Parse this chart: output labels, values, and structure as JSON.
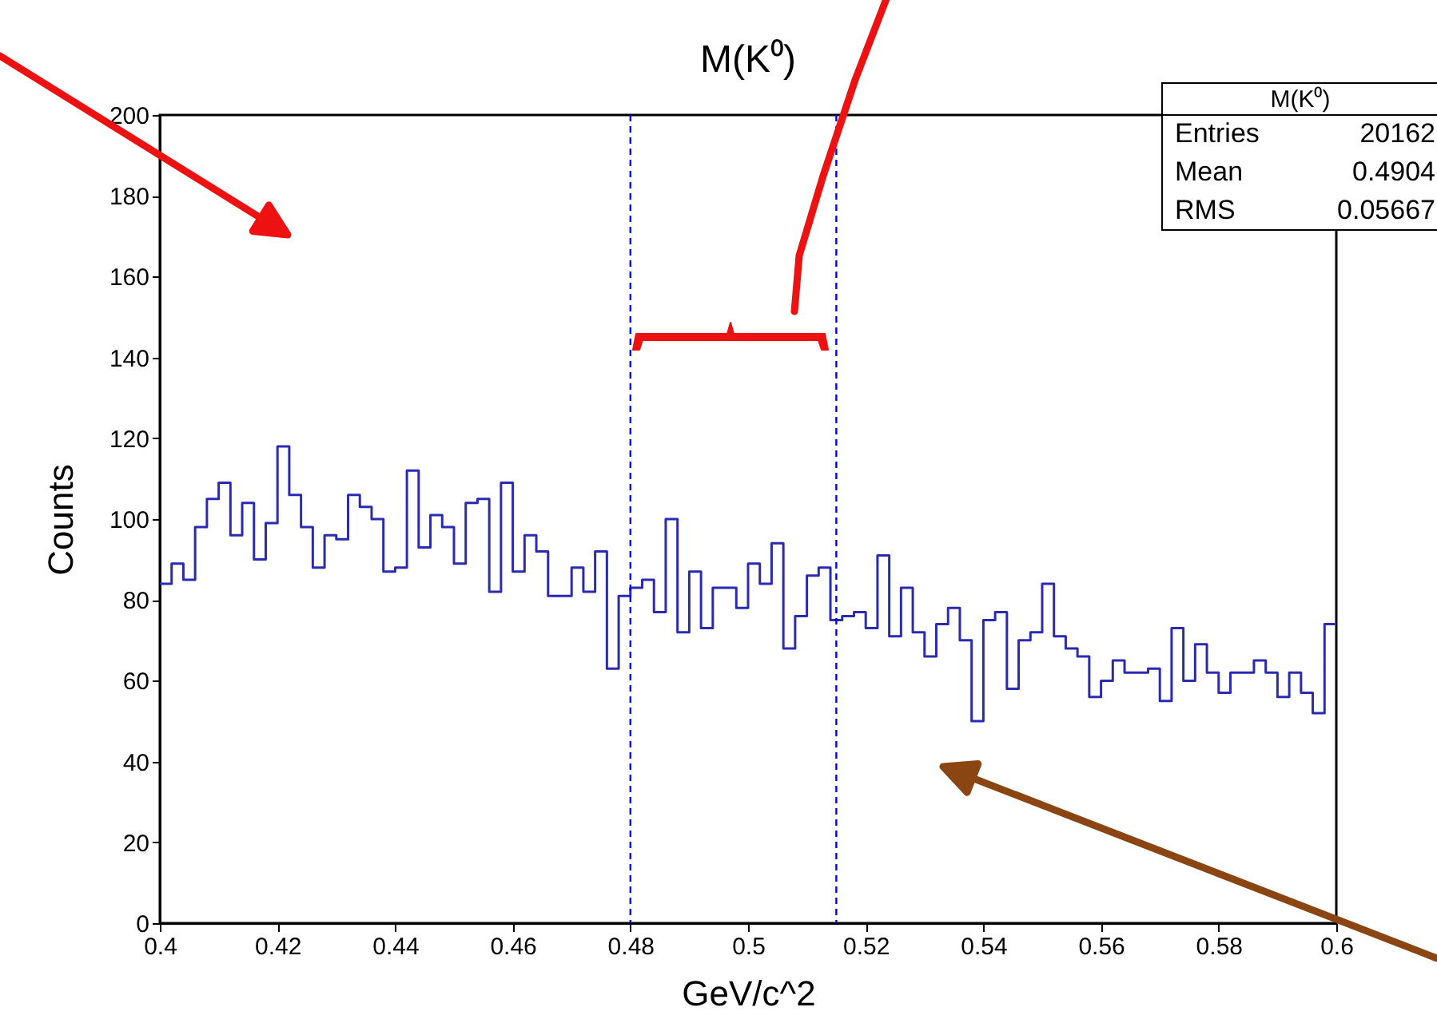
{
  "chart_data": {
    "type": "histogram",
    "title": "M(K⁰)",
    "xlabel": "GeV/c^2",
    "ylabel": "Counts",
    "bins": [
      0.4,
      0.402,
      0.404,
      0.406,
      0.408,
      0.41,
      0.412,
      0.414,
      0.416,
      0.418,
      0.42,
      0.422,
      0.424,
      0.426,
      0.428,
      0.43,
      0.432,
      0.434,
      0.436,
      0.438,
      0.44,
      0.442,
      0.444,
      0.446,
      0.448,
      0.45,
      0.452,
      0.454,
      0.456,
      0.458,
      0.46,
      0.462,
      0.464,
      0.466,
      0.468,
      0.47,
      0.472,
      0.474,
      0.476,
      0.478,
      0.48,
      0.482,
      0.484,
      0.486,
      0.488,
      0.49,
      0.492,
      0.494,
      0.496,
      0.498,
      0.5,
      0.502,
      0.504,
      0.506,
      0.508,
      0.51,
      0.512,
      0.514,
      0.516,
      0.518,
      0.52,
      0.522,
      0.524,
      0.526,
      0.528,
      0.53,
      0.532,
      0.534,
      0.536,
      0.538,
      0.54,
      0.542,
      0.544,
      0.546,
      0.548,
      0.55,
      0.552,
      0.554,
      0.556,
      0.558,
      0.56,
      0.562,
      0.564,
      0.566,
      0.568,
      0.57,
      0.572,
      0.574,
      0.576,
      0.578,
      0.58,
      0.582,
      0.584,
      0.586,
      0.588,
      0.59,
      0.592,
      0.594,
      0.596,
      0.598,
      0.6
    ],
    "values": [
      84,
      89,
      85,
      98,
      105,
      109,
      96,
      104,
      90,
      99,
      118,
      106,
      98,
      88,
      96,
      95,
      106,
      103,
      100,
      87,
      88,
      112,
      93,
      101,
      98,
      89,
      104,
      105,
      82,
      109,
      87,
      96,
      92,
      81,
      81,
      88,
      82,
      92,
      63,
      81,
      83,
      85,
      77,
      100,
      72,
      87,
      73,
      83,
      83,
      78,
      89,
      84,
      94,
      68,
      76,
      86,
      88,
      75,
      76,
      77,
      73,
      91,
      71,
      83,
      72,
      66,
      74,
      78,
      70,
      50,
      75,
      77,
      58,
      70,
      72,
      84,
      71,
      68,
      66,
      56,
      60,
      65,
      62,
      62,
      63,
      55,
      73,
      60,
      69,
      62,
      57,
      62,
      62,
      65,
      62,
      56,
      62,
      57,
      52,
      74
    ],
    "color": "#2a2ab5",
    "xlim": [
      0.4,
      0.6
    ],
    "xticks": [
      0.4,
      0.42,
      0.44,
      0.46,
      0.48,
      0.5,
      0.52,
      0.54,
      0.56,
      0.58,
      0.6
    ],
    "ylim": [
      0,
      200
    ],
    "yticks": [
      0,
      20,
      40,
      60,
      80,
      100,
      120,
      140,
      160,
      180,
      200
    ],
    "grid": false,
    "ref_lines": [
      {
        "axis": "x",
        "value": 0.48,
        "color": "#0000ff",
        "line_style": "dashed"
      },
      {
        "axis": "x",
        "value": 0.515,
        "color": "#0000ff",
        "line_style": "dashed"
      }
    ],
    "annotations": [
      "M(K⁰)",
      "Entries",
      "20162",
      "Mean",
      "0.4904",
      "RMS",
      "0.05667"
    ]
  }
}
